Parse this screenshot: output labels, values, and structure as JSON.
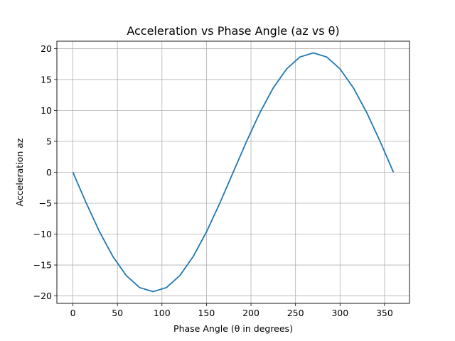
{
  "chart_data": {
    "type": "line",
    "title": "Acceleration vs Phase Angle (az vs θ)",
    "xlabel": "Phase Angle (θ in degrees)",
    "ylabel": "Acceleration az",
    "xlim": [
      -18,
      378
    ],
    "ylim": [
      -21.2,
      21.2
    ],
    "xticks": [
      0,
      50,
      100,
      150,
      200,
      250,
      300,
      350
    ],
    "yticks": [
      -20,
      -15,
      -10,
      -5,
      0,
      5,
      10,
      15,
      20
    ],
    "xtick_labels": [
      "0",
      "50",
      "100",
      "150",
      "200",
      "250",
      "300",
      "350"
    ],
    "ytick_labels": [
      "−20",
      "−15",
      "−10",
      "−5",
      "0",
      "5",
      "10",
      "15",
      "20"
    ],
    "grid": true,
    "series": [
      {
        "color": "#1f77b4",
        "x": [
          0,
          15,
          30,
          45,
          60,
          75,
          90,
          105,
          120,
          135,
          150,
          165,
          180,
          195,
          210,
          225,
          240,
          255,
          270,
          285,
          300,
          315,
          330,
          345,
          360
        ],
        "y": [
          0,
          -4.99,
          -9.65,
          -13.65,
          -16.72,
          -18.65,
          -19.3,
          -18.65,
          -16.72,
          -13.65,
          -9.65,
          -4.99,
          0,
          4.99,
          9.65,
          13.65,
          16.72,
          18.65,
          19.3,
          18.65,
          16.72,
          13.65,
          9.65,
          4.99,
          0
        ]
      }
    ]
  }
}
